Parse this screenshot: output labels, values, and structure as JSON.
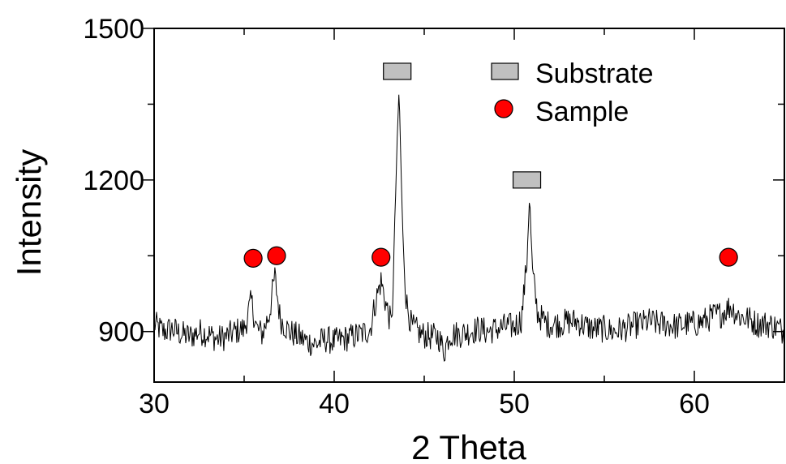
{
  "chart_data": {
    "type": "line",
    "title": "",
    "xlabel": "2 Theta",
    "ylabel": "Intensity",
    "xlim": [
      30,
      65
    ],
    "ylim": [
      800,
      1500
    ],
    "xticks": [
      30,
      40,
      50,
      60
    ],
    "xtick_labels": [
      "30",
      "40",
      "50",
      "60"
    ],
    "yticks": [
      900,
      1200,
      1500
    ],
    "ytick_labels": [
      "900",
      "1200",
      "1500"
    ],
    "grid": false,
    "legend_position": "top-right",
    "colors": {
      "line": "#000000",
      "substrate_marker": "#c0c0c0",
      "sample_marker": "#ff0000"
    },
    "legend": [
      {
        "label": "Substrate",
        "marker": "gray-square"
      },
      {
        "label": "Sample",
        "marker": "red-circle"
      }
    ],
    "series": [
      {
        "values": [
          [
            30.0,
            915
          ],
          [
            30.5,
            900
          ],
          [
            31.0,
            905
          ],
          [
            31.5,
            895
          ],
          [
            32.0,
            890
          ],
          [
            32.5,
            900
          ],
          [
            33.0,
            895
          ],
          [
            33.5,
            885
          ],
          [
            34.0,
            890
          ],
          [
            34.5,
            900
          ],
          [
            35.0,
            905
          ],
          [
            35.4,
            960
          ],
          [
            35.7,
            905
          ],
          [
            36.0,
            895
          ],
          [
            36.4,
            935
          ],
          [
            36.7,
            1010
          ],
          [
            37.0,
            925
          ],
          [
            37.5,
            900
          ],
          [
            38.0,
            890
          ],
          [
            38.5,
            880
          ],
          [
            39.0,
            875
          ],
          [
            39.5,
            885
          ],
          [
            40.0,
            880
          ],
          [
            40.5,
            885
          ],
          [
            41.0,
            890
          ],
          [
            41.5,
            895
          ],
          [
            42.0,
            905
          ],
          [
            42.3,
            960
          ],
          [
            42.6,
            1000
          ],
          [
            42.9,
            950
          ],
          [
            43.2,
            910
          ],
          [
            43.45,
            1220
          ],
          [
            43.6,
            1380
          ],
          [
            43.8,
            1100
          ],
          [
            44.0,
            960
          ],
          [
            44.3,
            910
          ],
          [
            44.8,
            895
          ],
          [
            45.3,
            890
          ],
          [
            45.8,
            890
          ],
          [
            46.1,
            860
          ],
          [
            46.4,
            895
          ],
          [
            47.0,
            895
          ],
          [
            47.5,
            900
          ],
          [
            48.0,
            905
          ],
          [
            48.5,
            900
          ],
          [
            49.0,
            905
          ],
          [
            49.5,
            910
          ],
          [
            50.0,
            910
          ],
          [
            50.4,
            925
          ],
          [
            50.7,
            1040
          ],
          [
            50.85,
            1170
          ],
          [
            51.0,
            1020
          ],
          [
            51.3,
            935
          ],
          [
            51.8,
            915
          ],
          [
            52.5,
            915
          ],
          [
            53.0,
            920
          ],
          [
            53.5,
            920
          ],
          [
            54.0,
            910
          ],
          [
            54.5,
            905
          ],
          [
            55.0,
            905
          ],
          [
            55.5,
            900
          ],
          [
            56.0,
            905
          ],
          [
            56.5,
            910
          ],
          [
            57.0,
            915
          ],
          [
            57.5,
            920
          ],
          [
            58.0,
            915
          ],
          [
            58.5,
            915
          ],
          [
            59.0,
            910
          ],
          [
            59.5,
            915
          ],
          [
            60.0,
            915
          ],
          [
            60.5,
            920
          ],
          [
            61.0,
            930
          ],
          [
            61.5,
            935
          ],
          [
            62.0,
            950
          ],
          [
            62.5,
            930
          ],
          [
            63.0,
            925
          ],
          [
            63.5,
            915
          ],
          [
            64.0,
            915
          ],
          [
            64.5,
            910
          ],
          [
            65.0,
            900
          ]
        ],
        "noise_amplitude": 28
      }
    ],
    "annotations": {
      "substrate_peaks": [
        {
          "x": 43.5,
          "y": 1415
        },
        {
          "x": 50.7,
          "y": 1200
        }
      ],
      "sample_peaks": [
        {
          "x": 35.5,
          "y": 1045
        },
        {
          "x": 36.8,
          "y": 1050
        },
        {
          "x": 42.6,
          "y": 1047
        },
        {
          "x": 61.9,
          "y": 1047
        }
      ]
    }
  }
}
